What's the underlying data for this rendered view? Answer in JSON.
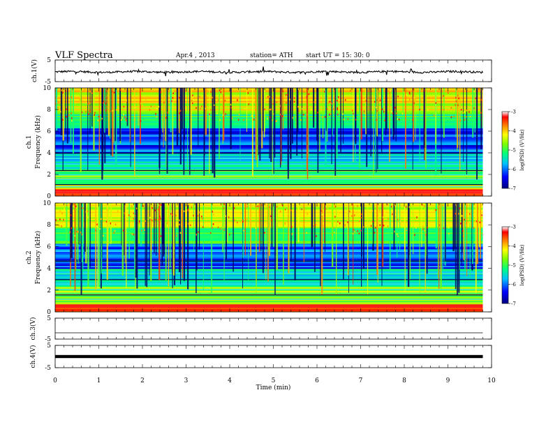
{
  "header": {
    "title": "VLF  Spectra",
    "date": "Apr.4  , 2013",
    "station": "station= ATH",
    "start": "start  UT =   15: 30: 0"
  },
  "chart_data": [
    {
      "type": "line",
      "ylabel": "ch.1(V)",
      "ylim": [
        -5,
        5
      ],
      "yticks": [
        "5",
        "-5"
      ],
      "description_level": -0.5,
      "color": "#000000"
    },
    {
      "type": "heatmap",
      "ylabel": "Frequency  (kHz)",
      "ylabel_prefix": "ch.1",
      "ylim": [
        0,
        10
      ],
      "yticks": [
        "0",
        "2",
        "4",
        "6",
        "8",
        "10"
      ],
      "colorbar": {
        "label": "log(PSD) (V²/Hz)",
        "range": [
          -7,
          -3
        ],
        "ticks": [
          "-3",
          "-4",
          "-5",
          "-6",
          "-7"
        ]
      }
    },
    {
      "type": "heatmap",
      "ylabel": "Frequency  (kHz)",
      "ylabel_prefix": "ch.2",
      "ylim": [
        0,
        10
      ],
      "yticks": [
        "0",
        "2",
        "4",
        "6",
        "8",
        "10"
      ],
      "colorbar": {
        "label": "log(PSD) (V²/Hz)",
        "range": [
          -7,
          -3
        ],
        "ticks": [
          "-3",
          "-4",
          "-5",
          "-6",
          "-7"
        ]
      }
    },
    {
      "type": "line",
      "ylabel": "ch.3(V)",
      "ylim": [
        -5,
        5
      ],
      "yticks": [
        "5",
        "-5"
      ],
      "color": "#000000"
    },
    {
      "type": "line",
      "ylabel": "ch.4(V)",
      "ylim": [
        -5,
        5
      ],
      "yticks": [
        "5",
        "-5"
      ],
      "color": "#000000"
    }
  ],
  "xaxis": {
    "label": "Time  (min)",
    "range": [
      0,
      10
    ],
    "ticks": [
      "0",
      "1",
      "2",
      "3",
      "4",
      "5",
      "6",
      "7",
      "8",
      "9",
      "10"
    ],
    "data_end": 9.8
  }
}
